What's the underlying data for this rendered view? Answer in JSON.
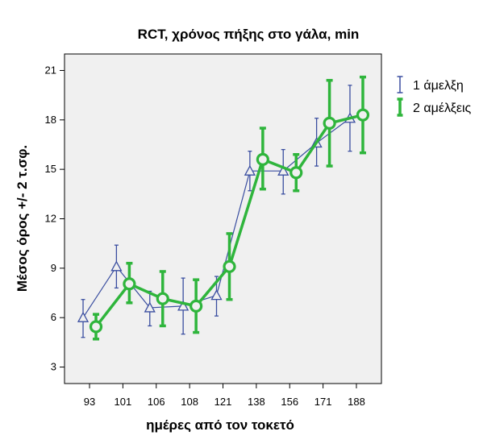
{
  "chart_data": {
    "type": "line",
    "title": "RCT, χρόνος πήξης στο γάλα, min",
    "xlabel": "ημέρες από τον τοκετό",
    "ylabel": "Μέσος όρος +/- 2 τ.σφ.",
    "categories": [
      "93",
      "101",
      "106",
      "108",
      "121",
      "138",
      "156",
      "171",
      "188"
    ],
    "yticks": [
      3,
      6,
      9,
      12,
      15,
      18,
      21
    ],
    "ylim": [
      2.0,
      22.0
    ],
    "grid": false,
    "legend_position": "right",
    "series": [
      {
        "name": "1 άμελξη",
        "color": "#3a4ea0",
        "marker": "triangle",
        "mean": [
          6.0,
          9.1,
          6.6,
          6.7,
          7.35,
          14.9,
          14.9,
          16.6,
          18.1
        ],
        "lower": [
          4.8,
          7.8,
          5.5,
          5.0,
          6.1,
          13.7,
          13.5,
          15.2,
          16.1
        ],
        "upper": [
          7.1,
          10.4,
          7.6,
          8.4,
          8.5,
          16.1,
          16.2,
          18.1,
          20.1
        ]
      },
      {
        "name": "2 αμέλξεις",
        "color": "#2fb53c",
        "marker": "circle",
        "mean": [
          5.45,
          8.05,
          7.15,
          6.7,
          9.1,
          15.6,
          14.8,
          17.8,
          18.3
        ],
        "lower": [
          4.7,
          6.9,
          5.5,
          5.1,
          7.1,
          13.8,
          13.7,
          15.2,
          16.0
        ],
        "upper": [
          6.2,
          9.3,
          8.8,
          8.3,
          11.1,
          17.5,
          15.9,
          20.4,
          20.6
        ]
      }
    ]
  }
}
